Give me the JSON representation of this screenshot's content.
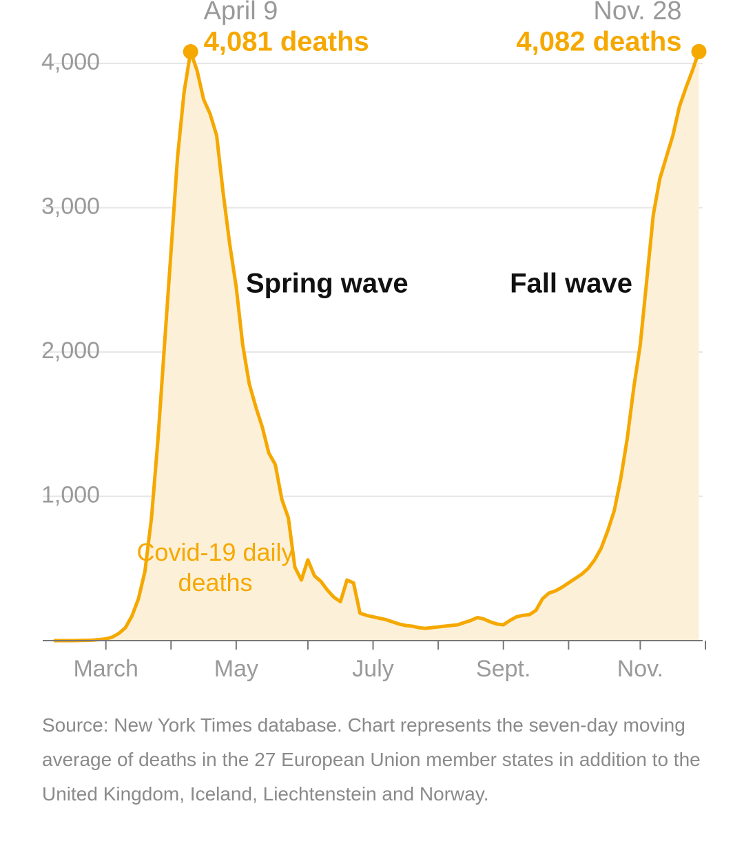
{
  "chart_data": {
    "type": "area",
    "categories": [
      null,
      null,
      null,
      null,
      null,
      null,
      null,
      null,
      "March",
      null,
      null,
      null,
      null,
      null,
      null,
      null,
      null,
      null,
      null,
      null,
      null,
      null,
      null,
      null,
      null,
      null,
      null,
      null,
      "May",
      null,
      null,
      null,
      null,
      null,
      null,
      null,
      null,
      null,
      null,
      null,
      null,
      null,
      null,
      null,
      null,
      null,
      null,
      null,
      null,
      "July",
      null,
      null,
      null,
      null,
      null,
      null,
      null,
      null,
      null,
      null,
      null,
      null,
      null,
      null,
      null,
      null,
      null,
      null,
      null,
      "Sept.",
      null,
      null,
      null,
      null,
      null,
      null,
      null,
      null,
      null,
      null,
      null,
      null,
      null,
      null,
      null,
      null,
      null,
      null,
      null,
      null,
      "Nov.",
      null,
      null,
      null,
      null,
      null,
      null,
      null,
      null,
      null
    ],
    "series": [
      {
        "name": "Covid-19 daily deaths",
        "color": "#f5a800",
        "fill": "#fdf0d8",
        "values": [
          0,
          0,
          0,
          0,
          1,
          2,
          4,
          7,
          12,
          25,
          50,
          90,
          170,
          290,
          480,
          850,
          1400,
          2050,
          2700,
          3350,
          3800,
          4081,
          3950,
          3750,
          3650,
          3500,
          3100,
          2750,
          2450,
          2050,
          1780,
          1620,
          1480,
          1300,
          1220,
          980,
          850,
          510,
          420,
          560,
          450,
          410,
          350,
          300,
          270,
          420,
          400,
          190,
          175,
          165,
          155,
          145,
          130,
          115,
          105,
          100,
          90,
          85,
          90,
          95,
          100,
          105,
          110,
          125,
          140,
          160,
          150,
          130,
          115,
          110,
          140,
          165,
          175,
          180,
          210,
          290,
          330,
          345,
          370,
          400,
          430,
          460,
          500,
          560,
          640,
          760,
          900,
          1120,
          1400,
          1750,
          2050,
          2500,
          2950,
          3200,
          3350,
          3500,
          3700,
          3830,
          3950,
          4082
        ]
      }
    ],
    "ylim": [
      0,
      4000
    ],
    "yticks": [
      {
        "value": 1000,
        "label": "1,000"
      },
      {
        "value": 2000,
        "label": "2,000"
      },
      {
        "value": 3000,
        "label": "3,000"
      },
      {
        "value": 4000,
        "label": "4,000"
      }
    ],
    "grid": true,
    "peaks": [
      {
        "date": "April 9",
        "label": "4,081 deaths"
      },
      {
        "date": "Nov. 28",
        "label": "4,082 deaths"
      }
    ],
    "wave_labels": [
      "Spring wave",
      "Fall wave"
    ],
    "source": "Source: New York Times database. Chart represents the seven-day moving average of deaths in the 27 European Union member states in addition to the United Kingdom, Iceland, Liechtenstein and Norway."
  }
}
